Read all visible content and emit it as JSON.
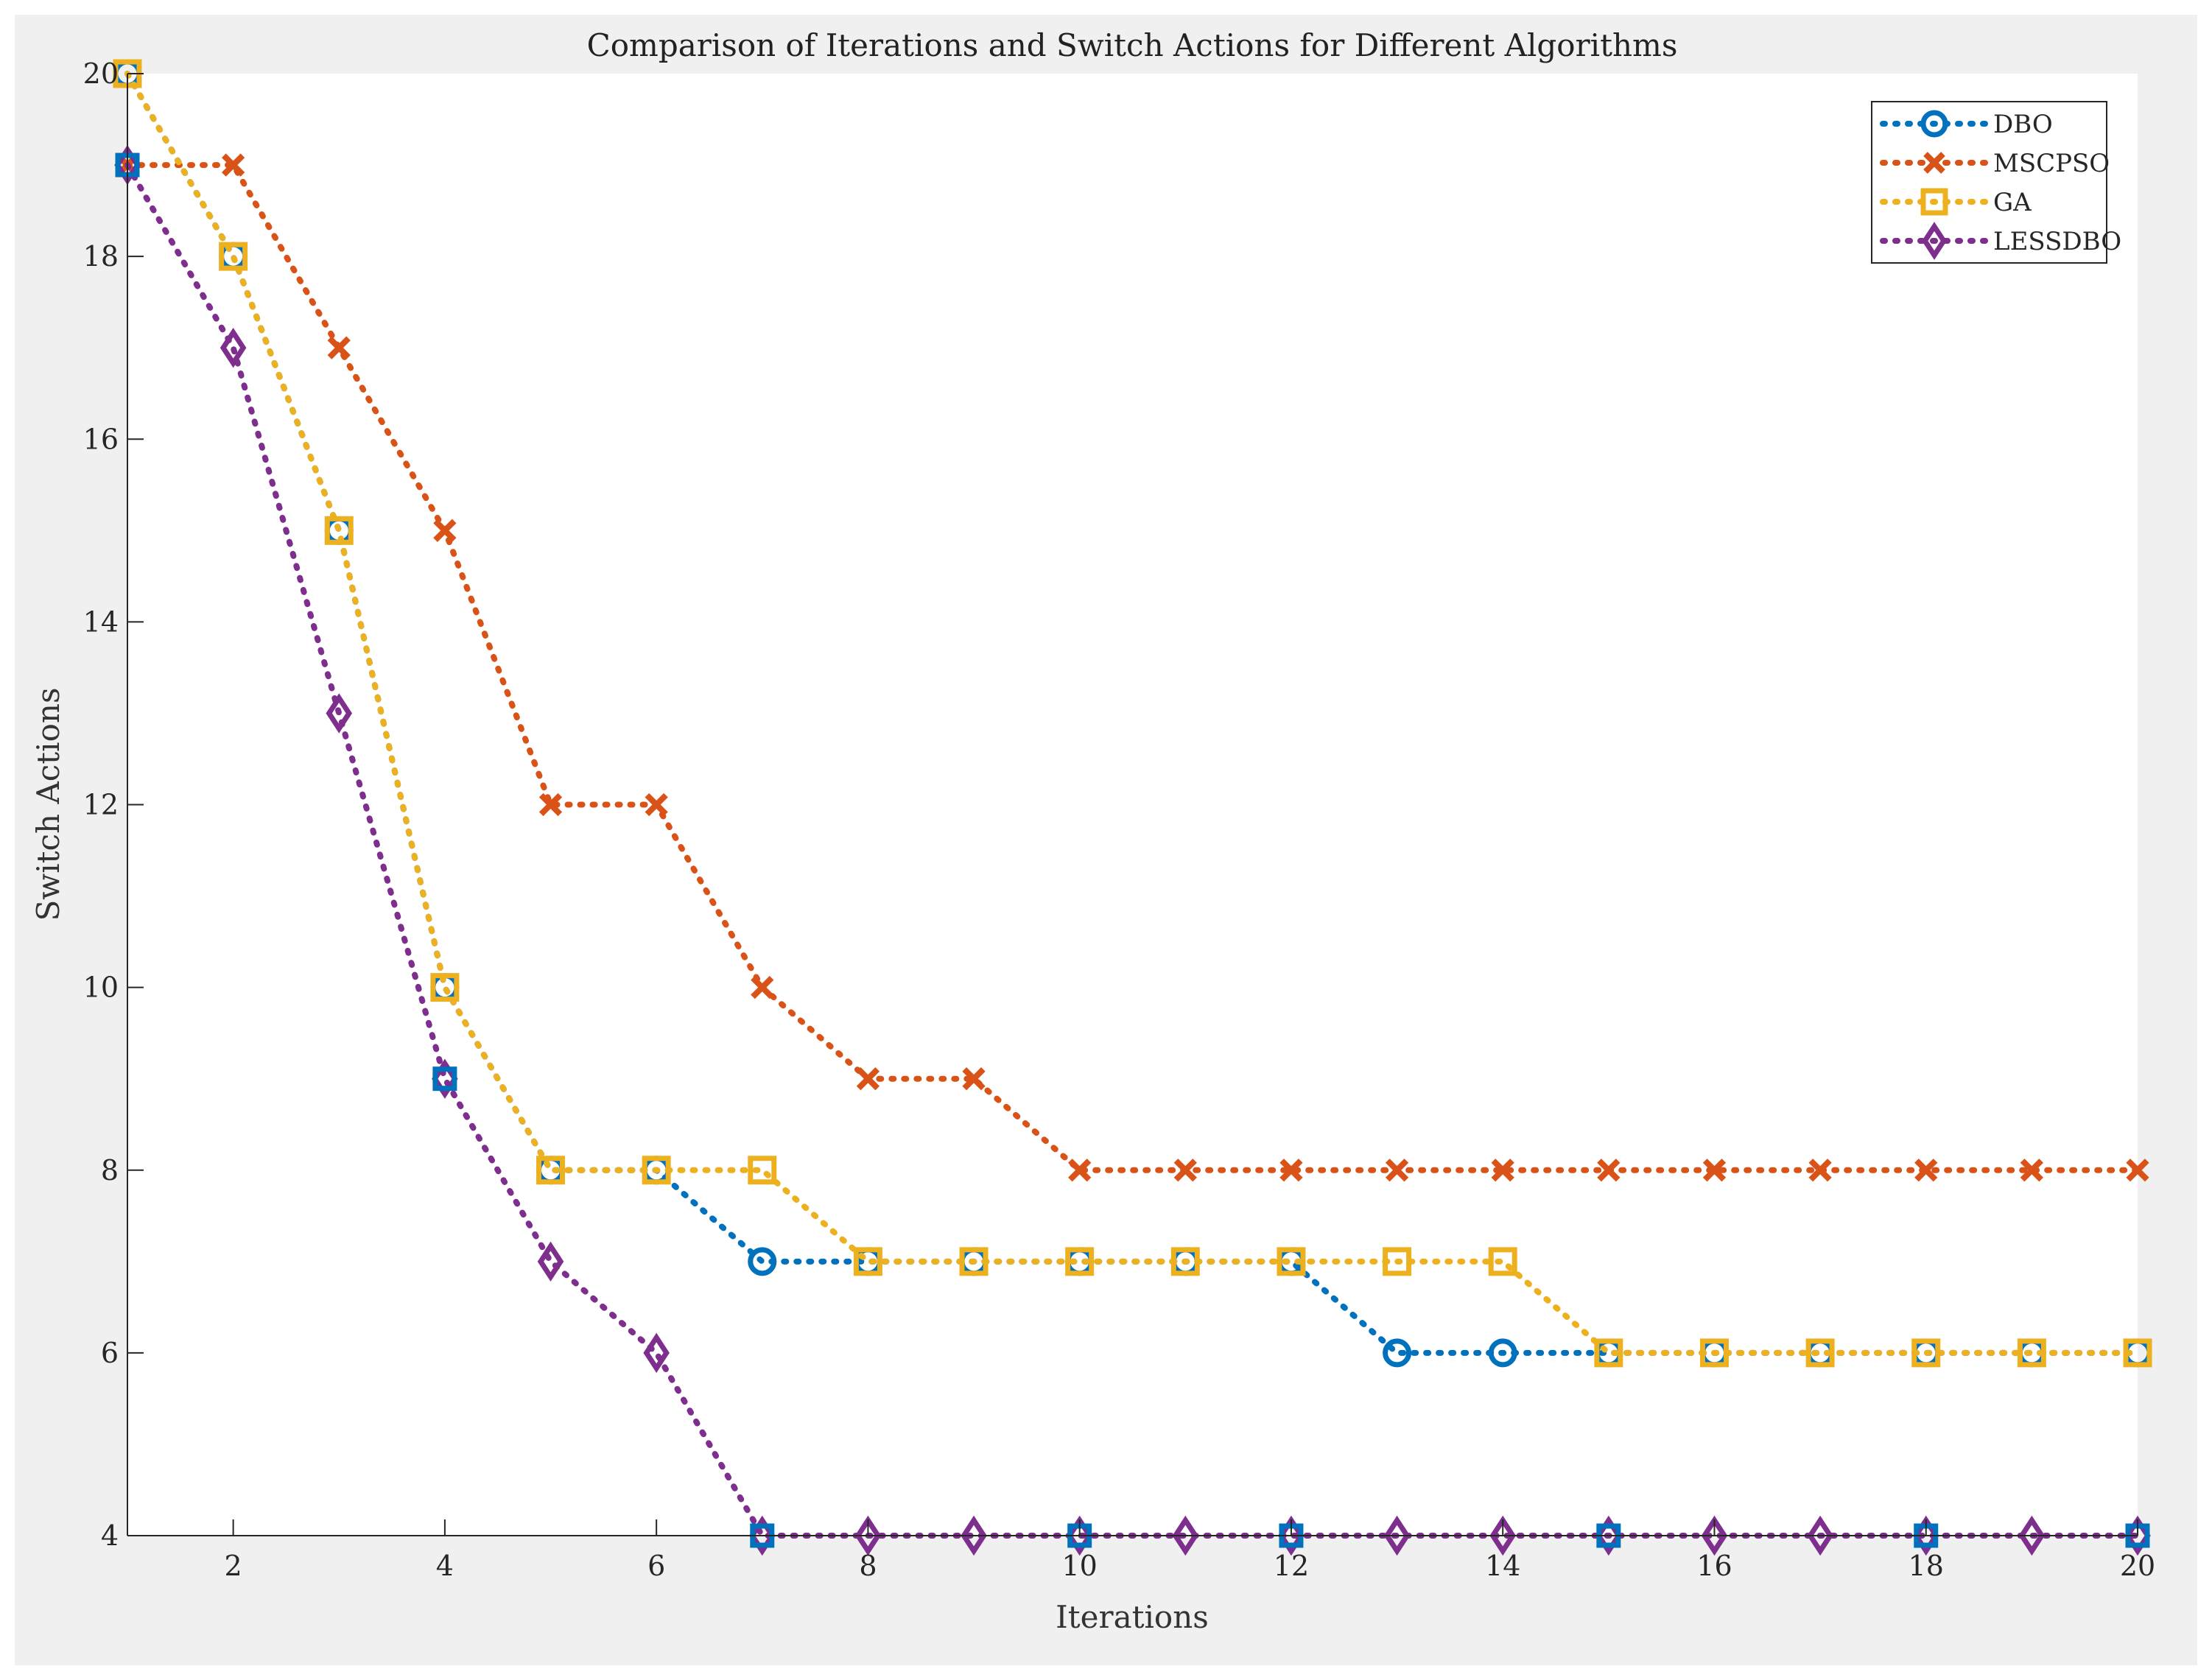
{
  "chart_data": {
    "type": "line",
    "title": "Comparison of Iterations and Switch Actions for Different Algorithms",
    "xlabel": "Iterations",
    "ylabel": "Switch Actions",
    "xlim": [
      1,
      20
    ],
    "ylim": [
      4,
      20
    ],
    "xticks": [
      2,
      4,
      6,
      8,
      10,
      12,
      14,
      16,
      18,
      20
    ],
    "yticks": [
      4,
      6,
      8,
      10,
      12,
      14,
      16,
      18,
      20
    ],
    "grid": false,
    "legend_position": "top-right",
    "x": [
      1,
      2,
      3,
      4,
      5,
      6,
      7,
      8,
      9,
      10,
      11,
      12,
      13,
      14,
      15,
      16,
      17,
      18,
      19,
      20
    ],
    "series": [
      {
        "name": "DBO",
        "color": "#0072BD",
        "marker": "circle",
        "values": [
          20,
          18,
          15,
          10,
          8,
          8,
          7,
          7,
          7,
          7,
          7,
          7,
          6,
          6,
          6,
          6,
          6,
          6,
          6,
          6
        ]
      },
      {
        "name": "MSCPSO",
        "color": "#D95319",
        "marker": "x",
        "values": [
          19,
          19,
          17,
          15,
          12,
          12,
          10,
          9,
          9,
          8,
          8,
          8,
          8,
          8,
          8,
          8,
          8,
          8,
          8,
          8
        ]
      },
      {
        "name": "GA",
        "color": "#EDB120",
        "marker": "square",
        "values": [
          20,
          18,
          15,
          10,
          8,
          8,
          8,
          7,
          7,
          7,
          7,
          7,
          7,
          7,
          6,
          6,
          6,
          6,
          6,
          6
        ]
      },
      {
        "name": "LESSDBO",
        "color": "#7E2F8E",
        "marker": "diamond",
        "values": [
          19,
          17,
          13,
          9,
          7,
          6,
          4,
          4,
          4,
          4,
          4,
          4,
          4,
          4,
          4,
          4,
          4,
          4,
          4,
          4
        ]
      }
    ],
    "overlay_markers": {
      "color": "#0072BD",
      "marker": "square",
      "x": [
        1,
        4,
        7,
        10,
        12,
        15,
        18,
        20
      ],
      "values": [
        19,
        9,
        4,
        4,
        4,
        4,
        4,
        4
      ]
    }
  }
}
